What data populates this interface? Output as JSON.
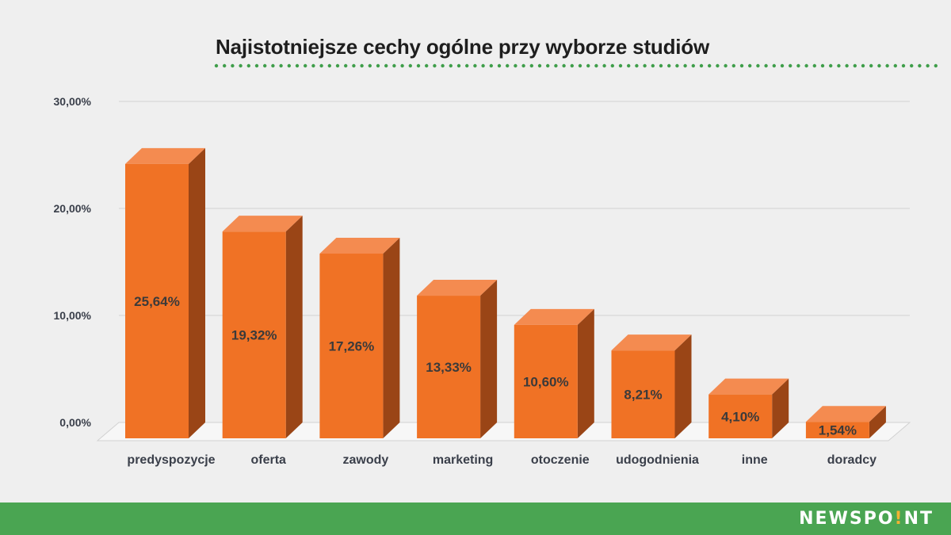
{
  "title": "Najistotniejsze cechy ogólne przy wyborze studiów",
  "brand": {
    "before": "NEWSPO",
    "dot": "!",
    "after": "NT"
  },
  "colors": {
    "bar_front": "#f07225",
    "bar_top": "#f48b50",
    "bar_side": "#9a4516",
    "grid": "#d2d2d2",
    "footer": "#4aa552",
    "title_dots": "#3f9e4a"
  },
  "chart_data": {
    "type": "bar",
    "categories": [
      "predyspozycje",
      "oferta",
      "zawody",
      "marketing",
      "otoczenie",
      "udogodnienia",
      "inne",
      "doradcy"
    ],
    "values": [
      25.64,
      19.32,
      17.26,
      13.33,
      10.6,
      8.21,
      4.1,
      1.54
    ],
    "data_labels": [
      "25,64%",
      "19,32%",
      "17,26%",
      "13,33%",
      "10,60%",
      "8,21%",
      "4,10%",
      "1,54%"
    ],
    "yticks": [
      0,
      10,
      20,
      30
    ],
    "ytick_labels": [
      "0,00%",
      "10,00%",
      "20,00%",
      "30,00%"
    ],
    "ylim": [
      0,
      30
    ],
    "grid": true,
    "style": "3d"
  }
}
